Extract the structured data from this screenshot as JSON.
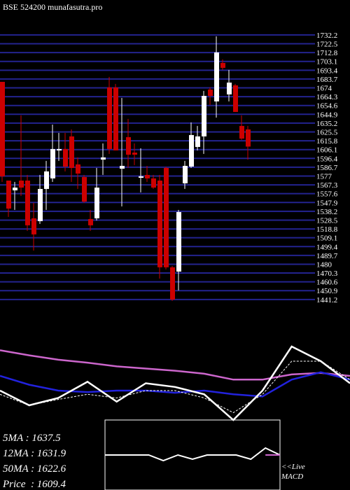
{
  "title": "BSE 524200 munafasutra.pro",
  "chart_data": {
    "type": "candlestick",
    "ylim": [
      1438.0,
      1736.0
    ],
    "yticks": [
      1732.2,
      1722.5,
      1712.8,
      1703.1,
      1693.4,
      1683.7,
      1674,
      1664.3,
      1654.6,
      1644.9,
      1635.2,
      1625.5,
      1615.8,
      1606.1,
      1596.4,
      1586.7,
      1577,
      1567.3,
      1557.6,
      1547.9,
      1538.2,
      1528.5,
      1518.8,
      1509.1,
      1499.4,
      1489.7,
      1480,
      1470.3,
      1460.6,
      1450.9,
      1441.2
    ],
    "grid": true,
    "grid_color": "#23238f",
    "up_color": "#ffffff",
    "down_color": "#cc0000",
    "open": [
      1680.6,
      1572.0,
      1561.3,
      1572.0,
      1572.0,
      1530.5,
      1527.4,
      1562.8,
      1574.4,
      1605.2,
      1606.7,
      1620.6,
      1589.8,
      1575.9,
      1529.7,
      1530.5,
      1595.1,
      1674.5,
      1674.5,
      1585.1,
      1619.8,
      1602.8,
      1575.1,
      1578.2,
      1574.4,
      1572.0,
      1585.9,
      1476.6,
      1471.9,
      1569.0,
      1587.4,
      1609.0,
      1620.6,
      1672.1,
      1659.1,
      1701.4,
      1666.8,
      1676.8,
      1632.1,
      1628.3
    ],
    "high": [
      1680.6,
      1572.0,
      1570.5,
      1643.7,
      1578.2,
      1547.4,
      1578.2,
      1593.6,
      1633.6,
      1624.4,
      1624.4,
      1628.3,
      1597.5,
      1578.2,
      1539.7,
      1585.9,
      1612.9,
      1686.0,
      1678.3,
      1662.9,
      1639.8,
      1612.9,
      1607.5,
      1588.2,
      1578.2,
      1578.2,
      1587.4,
      1478.1,
      1539.7,
      1593.6,
      1636.0,
      1632.1,
      1670.6,
      1674.5,
      1730.7,
      1705.3,
      1693.7,
      1678.3,
      1643.7,
      1632.1
    ],
    "low": [
      1570.5,
      1532.0,
      1539.7,
      1555.1,
      1516.6,
      1495.0,
      1524.3,
      1539.7,
      1570.5,
      1593.6,
      1582.1,
      1570.5,
      1562.8,
      1547.4,
      1516.6,
      1528.2,
      1578.2,
      1601.3,
      1605.2,
      1543.6,
      1585.9,
      1589.0,
      1559.0,
      1570.5,
      1562.8,
      1464.2,
      1474.3,
      1439.6,
      1451.2,
      1562.8,
      1585.9,
      1605.2,
      1601.3,
      1655.2,
      1641.3,
      1693.7,
      1659.1,
      1647.5,
      1616.7,
      1595.1
    ],
    "close": [
      1576.7,
      1541.2,
      1564.3,
      1564.3,
      1522.8,
      1512.8,
      1562.8,
      1582.1,
      1606.7,
      1606.7,
      1587.4,
      1585.9,
      1579.7,
      1548.9,
      1522.8,
      1564.3,
      1597.5,
      1606.7,
      1605.2,
      1588.2,
      1600.5,
      1600.5,
      1576.7,
      1574.4,
      1564.3,
      1476.6,
      1476.6,
      1441.1,
      1537.4,
      1588.2,
      1622.1,
      1620.6,
      1665.2,
      1665.2,
      1713.0,
      1696.0,
      1679.8,
      1647.5,
      1618.2,
      1609.4
    ]
  },
  "ma_panel": {
    "series": [
      {
        "color": "#cc66cc",
        "dash": false,
        "values": [
          95,
          88,
          82,
          78,
          73,
          70,
          67,
          63,
          55,
          55,
          62,
          64,
          60
        ]
      },
      {
        "color": "#2222dd",
        "dash": false,
        "values": [
          60,
          48,
          40,
          38,
          40,
          40,
          37,
          40,
          35,
          32,
          55,
          65,
          55
        ]
      },
      {
        "color": "#ffffff",
        "dash": false,
        "values": [
          40,
          20,
          30,
          52,
          25,
          50,
          45,
          35,
          0,
          40,
          100,
          80,
          50
        ]
      },
      {
        "color": "#ffffff",
        "dash": true,
        "values": [
          35,
          20,
          28,
          35,
          30,
          40,
          40,
          30,
          10,
          35,
          80,
          80,
          55
        ]
      }
    ]
  },
  "macd_panel": {
    "color": "#ffffff",
    "tail_color": "#cc66cc",
    "values": [
      0,
      0,
      0,
      0,
      -8,
      0,
      -6,
      0,
      0,
      0,
      -6,
      10,
      0
    ]
  },
  "stats": [
    "5MA : 1637.5",
    "12MA : 1631.9",
    "50MA : 1622.6",
    "Price  : 1609.4"
  ],
  "live": [
    "<<Live",
    "MACD"
  ]
}
